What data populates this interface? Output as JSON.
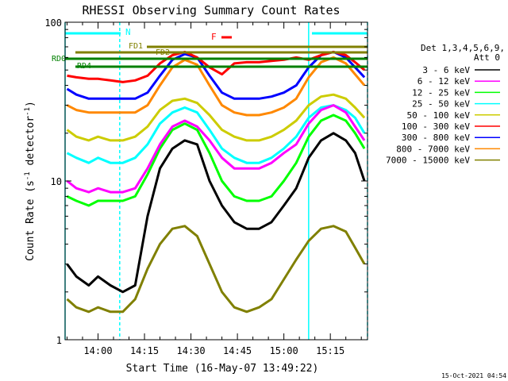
{
  "chart_data": {
    "type": "line",
    "title": "RHESSI Observing Summary Count Rates",
    "xlabel": "Start Time (16-May-07 13:49:22)",
    "ylabel": "Count Rate (s⁻¹ detector⁻¹)",
    "ylabel_main": "Count Rate (s",
    "ylabel_mid": " detector",
    "ylabel_end": ")",
    "ylabel_sup": "-1",
    "y_scale": "log",
    "ylim": [
      1,
      100
    ],
    "xlim": [
      "13:49:22",
      "15:27:00"
    ],
    "x_ticks": [
      "14:00",
      "14:15",
      "14:30",
      "14:45",
      "15:00",
      "15:15"
    ],
    "y_ticks": [
      "1",
      "10",
      "100"
    ],
    "timestamp": "15-Oct-2021 04:54",
    "legend": {
      "placement": "right",
      "header": [
        "Det 1,3,4,5,6,9,",
        "Att 0"
      ]
    },
    "flags": {
      "N": "N",
      "F": "F",
      "FD1": "FD1",
      "FD2": "FD2",
      "RD0": "RD0",
      "RD4": "RD4"
    },
    "night_intervals": [
      [
        "13:49:22",
        "14:07:00"
      ],
      [
        "15:08:00",
        "15:27:00"
      ]
    ],
    "series": [
      {
        "name": "3 - 6 keV",
        "color": "#000000",
        "x": [
          "13:50",
          "13:53",
          "13:57",
          "14:00",
          "14:04",
          "14:08",
          "14:12",
          "14:16",
          "14:20",
          "14:24",
          "14:28",
          "14:32",
          "14:36",
          "14:40",
          "14:44",
          "14:48",
          "14:52",
          "14:56",
          "15:00",
          "15:04",
          "15:08",
          "15:12",
          "15:16",
          "15:20",
          "15:23",
          "15:26"
        ],
        "values": [
          3,
          2.5,
          2.2,
          2.5,
          2.2,
          2,
          2.2,
          6,
          12,
          16,
          18,
          17,
          10,
          7,
          5.5,
          5,
          5,
          5.5,
          7,
          9,
          14,
          18,
          20,
          18,
          15,
          10
        ]
      },
      {
        "name": "6 - 12 keV",
        "color": "#ff00ff",
        "x": [
          "13:50",
          "13:53",
          "13:57",
          "14:00",
          "14:04",
          "14:08",
          "14:12",
          "14:16",
          "14:20",
          "14:24",
          "14:28",
          "14:32",
          "14:36",
          "14:40",
          "14:44",
          "14:48",
          "14:52",
          "14:56",
          "15:00",
          "15:04",
          "15:08",
          "15:12",
          "15:16",
          "15:20",
          "15:23",
          "15:26"
        ],
        "values": [
          10,
          9,
          8.5,
          9,
          8.5,
          8.5,
          9,
          12,
          17,
          22,
          24,
          22,
          18,
          14,
          12,
          12,
          12,
          13,
          15,
          17,
          23,
          28,
          30,
          27,
          22,
          18
        ]
      },
      {
        "name": "12 - 25 keV",
        "color": "#00ff00",
        "x": [
          "13:50",
          "13:53",
          "13:57",
          "14:00",
          "14:04",
          "14:08",
          "14:12",
          "14:16",
          "14:20",
          "14:24",
          "14:28",
          "14:32",
          "14:36",
          "14:40",
          "14:44",
          "14:48",
          "14:52",
          "14:56",
          "15:00",
          "15:04",
          "15:08",
          "15:12",
          "15:16",
          "15:20",
          "15:23",
          "15:26"
        ],
        "values": [
          8,
          7.5,
          7,
          7.5,
          7.5,
          7.5,
          8,
          11,
          16,
          21,
          23,
          21,
          15,
          10,
          8,
          7.5,
          7.5,
          8,
          10,
          13,
          19,
          24,
          26,
          24,
          20,
          16
        ]
      },
      {
        "name": "25 - 50 keV",
        "color": "#00ffff",
        "x": [
          "13:50",
          "13:53",
          "13:57",
          "14:00",
          "14:04",
          "14:08",
          "14:12",
          "14:16",
          "14:20",
          "14:24",
          "14:28",
          "14:32",
          "14:36",
          "14:40",
          "14:44",
          "14:48",
          "14:52",
          "14:56",
          "15:00",
          "15:04",
          "15:08",
          "15:12",
          "15:16",
          "15:20",
          "15:23",
          "15:26"
        ],
        "values": [
          15,
          14,
          13,
          14,
          13,
          13,
          14,
          17,
          23,
          27,
          29,
          27,
          21,
          16,
          14,
          13,
          13,
          14,
          16,
          19,
          25,
          29,
          30,
          28,
          25,
          20
        ]
      },
      {
        "name": "50 - 100 keV",
        "color": "#cccc00",
        "x": [
          "13:50",
          "13:53",
          "13:57",
          "14:00",
          "14:04",
          "14:08",
          "14:12",
          "14:16",
          "14:20",
          "14:24",
          "14:28",
          "14:32",
          "14:36",
          "14:40",
          "14:44",
          "14:48",
          "14:52",
          "14:56",
          "15:00",
          "15:04",
          "15:08",
          "15:12",
          "15:16",
          "15:20",
          "15:23",
          "15:26"
        ],
        "values": [
          21,
          19,
          18,
          19,
          18,
          18,
          19,
          22,
          28,
          32,
          33,
          31,
          26,
          21,
          19,
          18,
          18,
          19,
          21,
          24,
          30,
          34,
          35,
          33,
          29,
          25
        ]
      },
      {
        "name": "100 - 300 keV",
        "color": "#ff0000",
        "x": [
          "13:50",
          "13:53",
          "13:57",
          "14:00",
          "14:04",
          "14:08",
          "14:12",
          "14:16",
          "14:20",
          "14:24",
          "14:28",
          "14:32",
          "14:36",
          "14:40",
          "14:44",
          "14:48",
          "14:52",
          "14:56",
          "15:00",
          "15:04",
          "15:08",
          "15:12",
          "15:16",
          "15:20",
          "15:23",
          "15:26"
        ],
        "values": [
          46,
          45,
          44,
          44,
          43,
          42,
          43,
          46,
          55,
          62,
          65,
          60,
          52,
          47,
          55,
          56,
          56,
          57,
          58,
          60,
          58,
          62,
          65,
          62,
          56,
          50
        ]
      },
      {
        "name": "300 - 800 keV",
        "color": "#0000ff",
        "x": [
          "13:50",
          "13:53",
          "13:57",
          "14:00",
          "14:04",
          "14:08",
          "14:12",
          "14:16",
          "14:20",
          "14:24",
          "14:28",
          "14:32",
          "14:36",
          "14:40",
          "14:44",
          "14:48",
          "14:52",
          "14:56",
          "15:00",
          "15:04",
          "15:08",
          "15:12",
          "15:16",
          "15:20",
          "15:23",
          "15:26"
        ],
        "values": [
          38,
          35,
          33,
          33,
          33,
          33,
          33,
          36,
          46,
          58,
          63,
          60,
          46,
          36,
          33,
          33,
          33,
          34,
          36,
          40,
          52,
          62,
          65,
          60,
          52,
          45
        ]
      },
      {
        "name": "800 - 7000 keV",
        "color": "#ff8800",
        "x": [
          "13:50",
          "13:53",
          "13:57",
          "14:00",
          "14:04",
          "14:08",
          "14:12",
          "14:16",
          "14:20",
          "14:24",
          "14:28",
          "14:32",
          "14:36",
          "14:40",
          "14:44",
          "14:48",
          "14:52",
          "14:56",
          "15:00",
          "15:04",
          "15:08",
          "15:12",
          "15:16",
          "15:20",
          "15:23",
          "15:26"
        ],
        "values": [
          30,
          28,
          27,
          27,
          27,
          27,
          27,
          30,
          40,
          52,
          58,
          54,
          40,
          30,
          27,
          26,
          26,
          27,
          29,
          33,
          45,
          56,
          60,
          55,
          47,
          40
        ]
      },
      {
        "name": "7000 - 15000 keV",
        "color": "#808000",
        "x": [
          "13:50",
          "13:53",
          "13:57",
          "14:00",
          "14:04",
          "14:08",
          "14:12",
          "14:16",
          "14:20",
          "14:24",
          "14:28",
          "14:32",
          "14:36",
          "14:40",
          "14:44",
          "14:48",
          "14:52",
          "14:56",
          "15:00",
          "15:04",
          "15:08",
          "15:12",
          "15:16",
          "15:20",
          "15:23",
          "15:26"
        ],
        "values": [
          1.8,
          1.6,
          1.5,
          1.6,
          1.5,
          1.5,
          1.8,
          2.8,
          4.0,
          5.0,
          5.2,
          4.5,
          3.0,
          2.0,
          1.6,
          1.5,
          1.6,
          1.8,
          2.4,
          3.2,
          4.2,
          5.0,
          5.2,
          4.8,
          3.8,
          3.0
        ]
      }
    ]
  }
}
